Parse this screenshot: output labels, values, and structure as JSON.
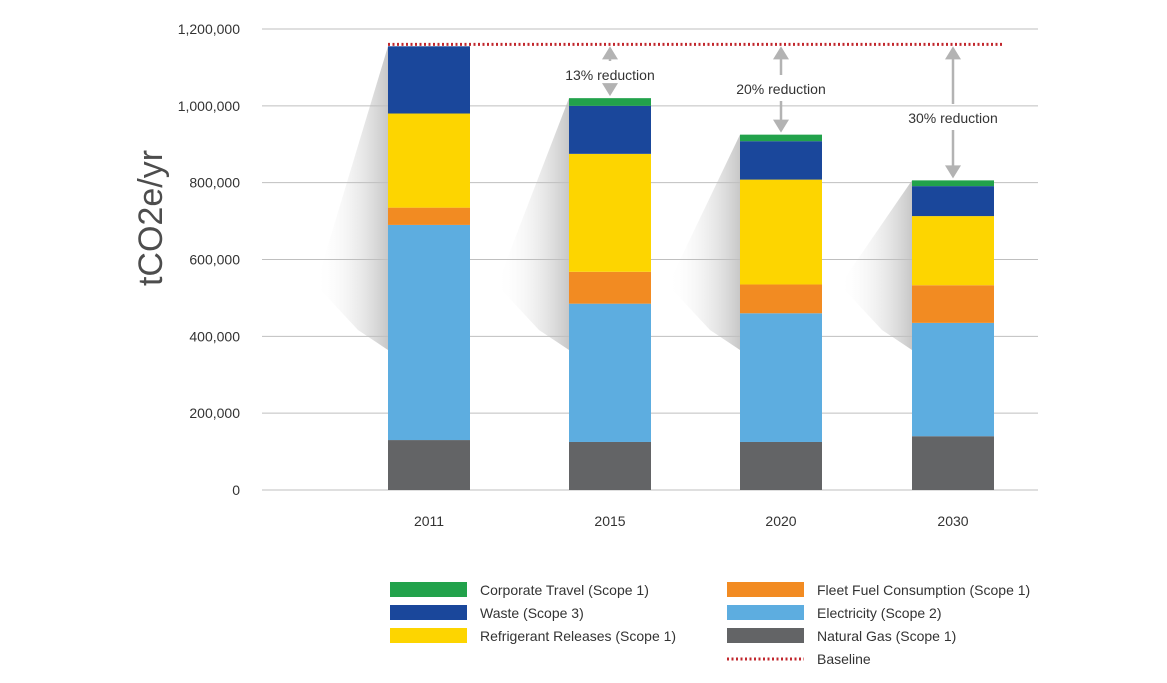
{
  "chart_data": {
    "type": "bar",
    "stacked": true,
    "title": "",
    "xlabel": "",
    "ylabel": "tCO2e/yr",
    "ylim": [
      0,
      1200000
    ],
    "yticks": [
      0,
      200000,
      400000,
      600000,
      800000,
      1000000,
      1200000
    ],
    "ytick_labels": [
      "0",
      "200,000",
      "400,000",
      "600,000",
      "800,000",
      "1,000,000",
      "1,200,000"
    ],
    "categories": [
      "2011",
      "2015",
      "2020",
      "2030"
    ],
    "series": [
      {
        "name": "Natural Gas (Scope 1)",
        "color": "#636466",
        "values": [
          130000,
          125000,
          125000,
          140000
        ]
      },
      {
        "name": "Electricity (Scope 2)",
        "color": "#5dade0",
        "values": [
          560000,
          360000,
          335000,
          295000
        ]
      },
      {
        "name": "Fleet Fuel Consumption (Scope 1)",
        "color": "#f28b22",
        "values": [
          45000,
          83000,
          75000,
          98000
        ]
      },
      {
        "name": "Refrigerant Releases (Scope 1)",
        "color": "#fdd500",
        "values": [
          245000,
          307000,
          273000,
          180000
        ]
      },
      {
        "name": "Waste (Scope 3)",
        "color": "#1a479b",
        "values": [
          175000,
          125000,
          100000,
          78000
        ]
      },
      {
        "name": "Corporate Travel (Scope 1)",
        "color": "#22a24b",
        "values": [
          0,
          20000,
          17000,
          15000
        ]
      }
    ],
    "baseline": {
      "name": "Baseline",
      "value": 1160000,
      "color": "#c1272d"
    },
    "annotations": [
      {
        "category": "2015",
        "text": "13% reduction"
      },
      {
        "category": "2020",
        "text": "20% reduction"
      },
      {
        "category": "2030",
        "text": "30% reduction"
      }
    ],
    "legend": {
      "placement": "bottom",
      "items": [
        {
          "label": "Corporate Travel (Scope 1)",
          "color": "#22a24b",
          "kind": "box"
        },
        {
          "label": "Waste (Scope 3)",
          "color": "#1a479b",
          "kind": "box"
        },
        {
          "label": "Refrigerant Releases (Scope 1)",
          "color": "#fdd500",
          "kind": "box"
        },
        {
          "label": "Fleet Fuel Consumption (Scope 1)",
          "color": "#f28b22",
          "kind": "box"
        },
        {
          "label": "Electricity (Scope 2)",
          "color": "#5dade0",
          "kind": "box"
        },
        {
          "label": "Natural Gas (Scope 1)",
          "color": "#636466",
          "kind": "box"
        },
        {
          "label": "Baseline",
          "color": "#c1272d",
          "kind": "dotted-line"
        }
      ]
    },
    "grid": true
  }
}
